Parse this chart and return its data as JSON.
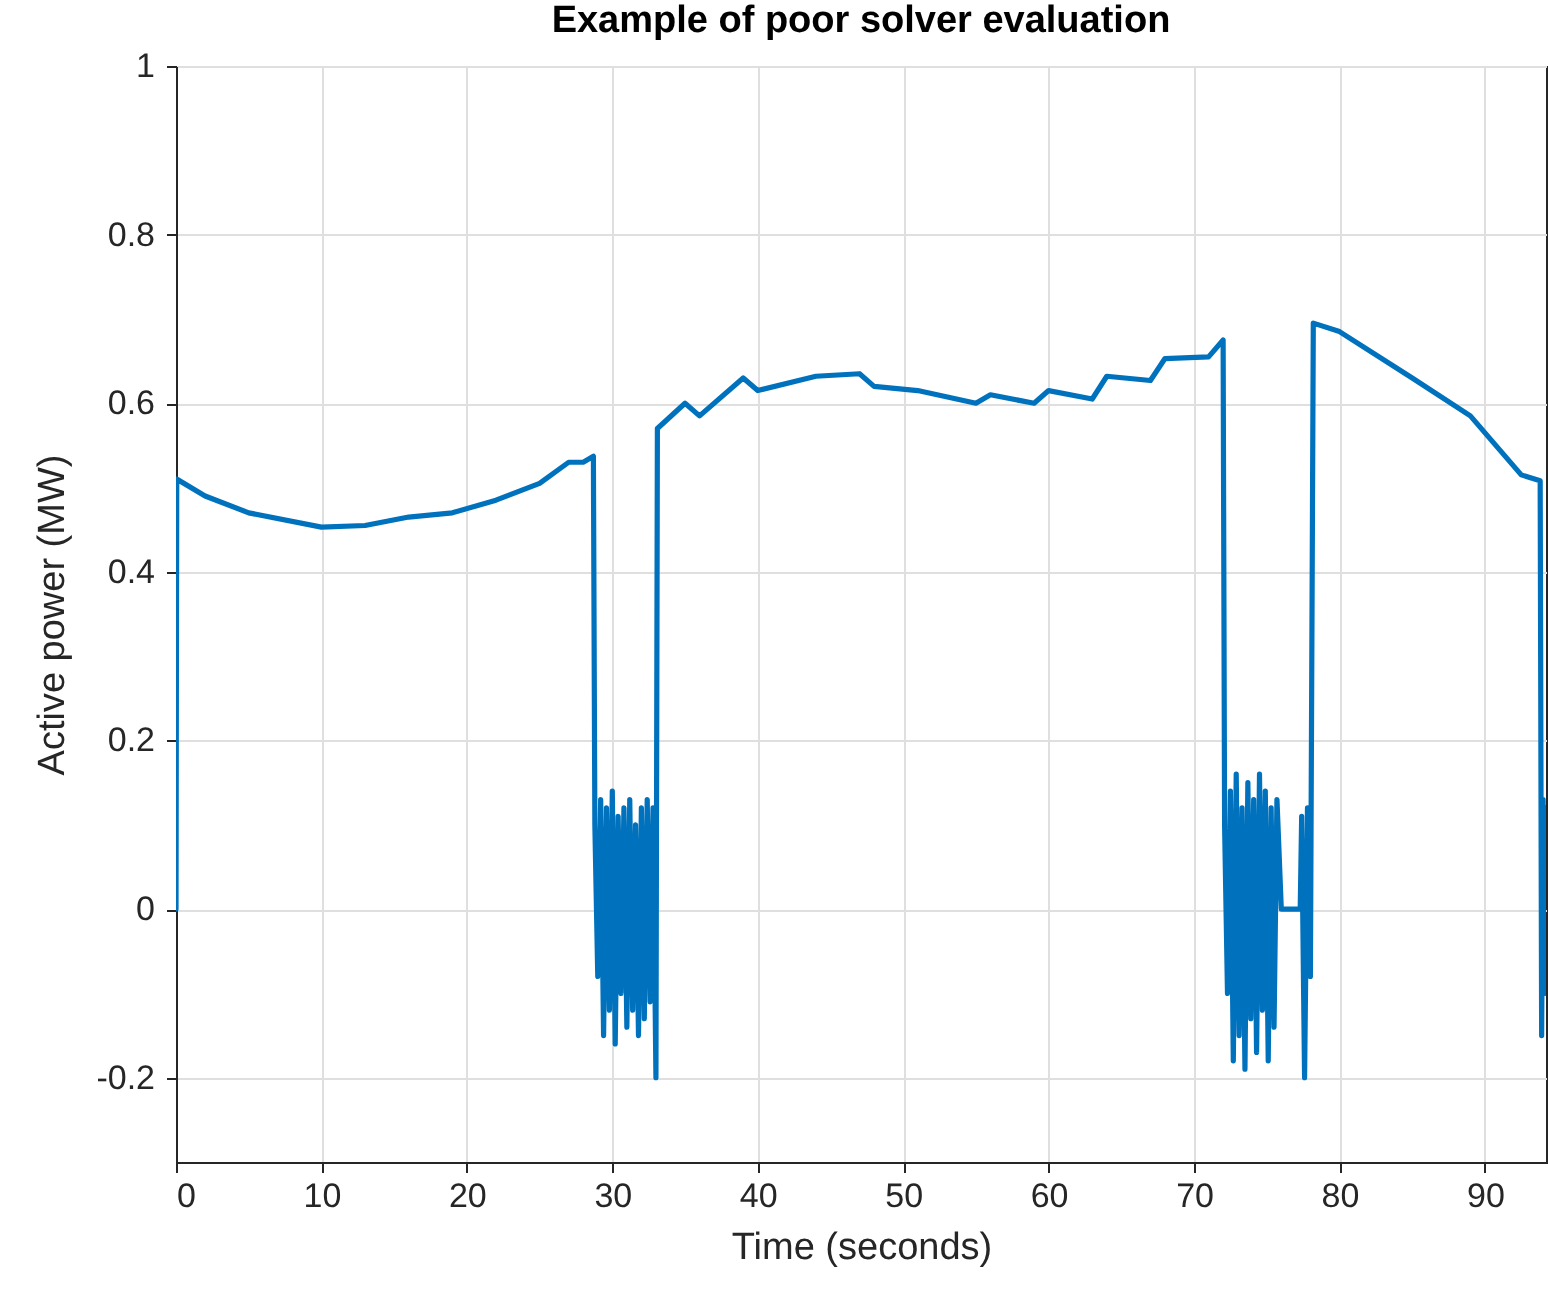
{
  "chart_data": {
    "type": "line",
    "title": "Example of poor solver evaluation",
    "xlabel": "Time (seconds)",
    "ylabel": "Active power (MW)",
    "xlim": [
      0,
      94.2
    ],
    "ylim": [
      -0.3,
      1
    ],
    "xticks": [
      0,
      10,
      20,
      30,
      40,
      50,
      60,
      70,
      80,
      90
    ],
    "yticks": [
      -0.2,
      0,
      0.2,
      0.4,
      0.6,
      0.8,
      1
    ],
    "grid": true,
    "line_style": "solid",
    "marker": "none",
    "series": [
      {
        "color": "#0072bd",
        "x": [
          0,
          0.05,
          2,
          5,
          10,
          13,
          16,
          19,
          22,
          25,
          27,
          28,
          28.7,
          28.8,
          29,
          29.2,
          29.4,
          29.6,
          29.8,
          30,
          30.2,
          30.4,
          30.6,
          30.8,
          31,
          31.2,
          31.4,
          31.6,
          31.8,
          32,
          32.2,
          32.4,
          32.6,
          32.8,
          33,
          33.1,
          35,
          36,
          39,
          40,
          44,
          47,
          48,
          51,
          55,
          56,
          59,
          60,
          63,
          64,
          67,
          68,
          71,
          72,
          72.1,
          72.3,
          72.5,
          72.7,
          72.9,
          73.1,
          73.3,
          73.5,
          73.7,
          73.9,
          74.1,
          74.3,
          74.5,
          74.7,
          74.9,
          75.1,
          75.3,
          75.5,
          75.7,
          76,
          77.3,
          77.4,
          77.6,
          77.8,
          78,
          78.2,
          80,
          85,
          89,
          91,
          92.5,
          93.8,
          93.9,
          94,
          94.1,
          94.2
        ],
        "values": [
          0,
          0.51,
          0.49,
          0.47,
          0.453,
          0.455,
          0.465,
          0.47,
          0.485,
          0.505,
          0.53,
          0.53,
          0.537,
          0.1,
          -0.08,
          0.13,
          -0.15,
          0.12,
          -0.12,
          0.14,
          -0.16,
          0.11,
          -0.1,
          0.12,
          -0.14,
          0.13,
          -0.12,
          0.1,
          -0.15,
          0.12,
          -0.13,
          0.13,
          -0.11,
          0.12,
          -0.2,
          0.57,
          0.6,
          0.585,
          0.63,
          0.615,
          0.632,
          0.635,
          0.62,
          0.615,
          0.6,
          0.61,
          0.6,
          0.615,
          0.605,
          0.632,
          0.627,
          0.653,
          0.655,
          0.675,
          0.1,
          -0.1,
          0.14,
          -0.18,
          0.16,
          -0.15,
          0.12,
          -0.19,
          0.15,
          -0.13,
          0.13,
          -0.17,
          0.16,
          -0.12,
          0.14,
          -0.18,
          0.12,
          -0.14,
          0.13,
          0,
          0,
          0.11,
          -0.2,
          0.12,
          -0.08,
          0.695,
          0.685,
          0.63,
          0.585,
          0.545,
          0.515,
          0.508,
          -0.15,
          0.13,
          -0.1,
          0.12
        ]
      }
    ]
  }
}
